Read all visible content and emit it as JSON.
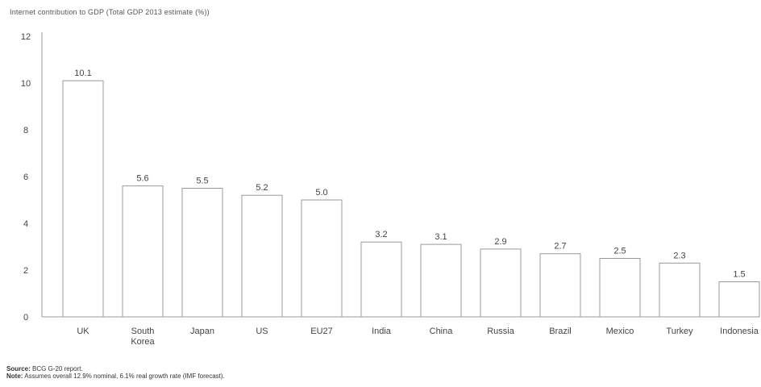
{
  "chart_data": {
    "type": "bar",
    "title": "Internet contribution to GDP (Total GDP 2013 estimate (%))",
    "categories": [
      "UK",
      "South Korea",
      "Japan",
      "US",
      "EU27",
      "India",
      "China",
      "Russia",
      "Brazil",
      "Mexico",
      "Turkey",
      "Indonesia"
    ],
    "category_lines": [
      [
        "UK"
      ],
      [
        "South",
        "Korea"
      ],
      [
        "Japan"
      ],
      [
        "US"
      ],
      [
        "EU27"
      ],
      [
        "India"
      ],
      [
        "China"
      ],
      [
        "Russia"
      ],
      [
        "Brazil"
      ],
      [
        "Mexico"
      ],
      [
        "Turkey"
      ],
      [
        "Indonesia"
      ]
    ],
    "values": [
      10.1,
      5.6,
      5.5,
      5.2,
      5.0,
      3.2,
      3.1,
      2.9,
      2.7,
      2.5,
      2.3,
      1.5
    ],
    "value_labels": [
      "10.1",
      "5.6",
      "5.5",
      "5.2",
      "5.0",
      "3.2",
      "3.1",
      "2.9",
      "2.7",
      "2.5",
      "2.3",
      "1.5"
    ],
    "ylim": [
      0,
      12
    ],
    "yticks": [
      0,
      2,
      4,
      6,
      8,
      10,
      12
    ],
    "grid": false,
    "legend": "none",
    "bar_fill": "#ffffff",
    "bar_stroke": "#999999",
    "text_color": "#444444"
  },
  "footnotes": {
    "source_label": "Source:",
    "source_text": " BCG G-20 report.",
    "note_label": "Note:",
    "note_text": " Assumes overall 12.9% nominal, 6.1% real growth rate (IMF forecast)."
  }
}
